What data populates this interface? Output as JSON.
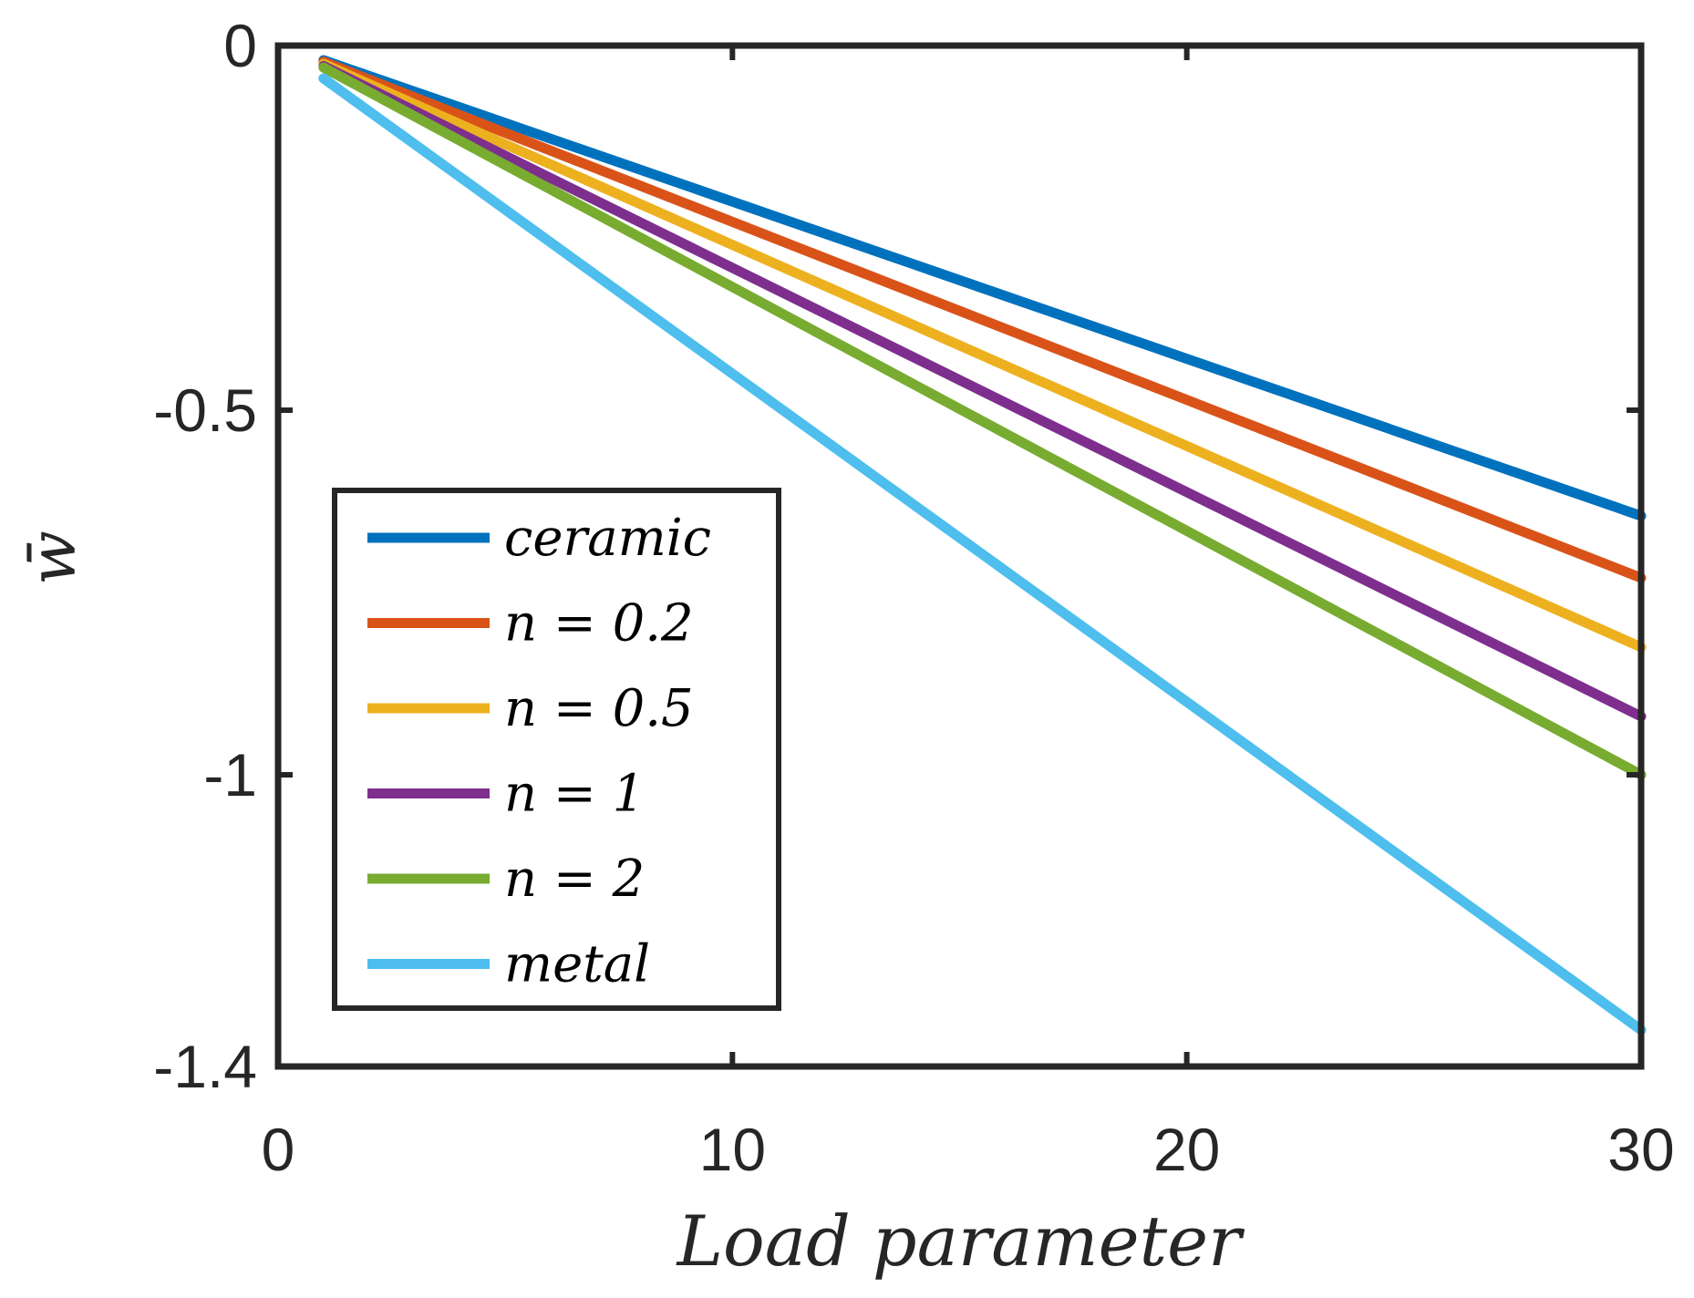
{
  "chart_data": {
    "type": "line",
    "title": "",
    "xlabel": "Load parameter",
    "ylabel": "w̄",
    "xlim": [
      0,
      30
    ],
    "ylim": [
      -1.4,
      0
    ],
    "xticks": [
      0,
      10,
      20,
      30
    ],
    "xtick_labels": [
      "0",
      "10",
      "20",
      "30"
    ],
    "yticks": [
      0,
      -0.5,
      -1,
      -1.4
    ],
    "ytick_labels": [
      "0",
      "-0.5",
      "-1",
      "-1.4"
    ],
    "grid": false,
    "legend_position": "lower-left",
    "x": [
      1,
      30
    ],
    "series": [
      {
        "name": "ceramic",
        "color": "#0072BD",
        "values": [
          -0.02,
          -0.645
        ]
      },
      {
        "name": "n = 0.2",
        "color": "#D95319",
        "values": [
          -0.022,
          -0.73
        ]
      },
      {
        "name": "n = 0.5",
        "color": "#EDB120",
        "values": [
          -0.025,
          -0.825
        ]
      },
      {
        "name": "n = 1",
        "color": "#7E2F8E",
        "values": [
          -0.028,
          -0.92
        ]
      },
      {
        "name": "n = 2",
        "color": "#77AC30",
        "values": [
          -0.03,
          -1.0
        ]
      },
      {
        "name": "metal",
        "color": "#4DBEEE",
        "values": [
          -0.045,
          -1.35
        ]
      }
    ]
  }
}
